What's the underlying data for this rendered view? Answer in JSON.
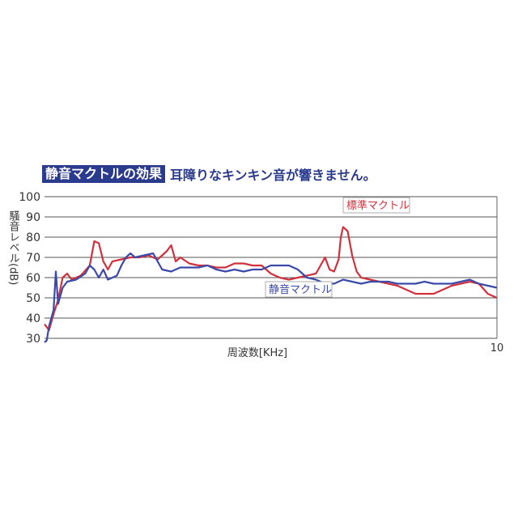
{
  "headline": {
    "badge": "静音マクトルの効果",
    "text": "耳障りなキンキン音が響きません。"
  },
  "chart_data": {
    "type": "line",
    "xlabel": "周波数[KHz]",
    "ylabel": "騒音レベル(dB)",
    "xlim": [
      0,
      10
    ],
    "ylim": [
      30,
      100
    ],
    "yticks": [
      30,
      40,
      50,
      60,
      70,
      80,
      90,
      100
    ],
    "xtick_label_right": "10",
    "grid": true,
    "series": [
      {
        "name": "標準マクトル",
        "color": "#d0313d",
        "label_position": "top-right",
        "points": [
          [
            0.0,
            37
          ],
          [
            0.1,
            34
          ],
          [
            0.2,
            42
          ],
          [
            0.3,
            49
          ],
          [
            0.4,
            60
          ],
          [
            0.5,
            62
          ],
          [
            0.6,
            59
          ],
          [
            0.8,
            61
          ],
          [
            1.0,
            66
          ],
          [
            1.1,
            78
          ],
          [
            1.2,
            77
          ],
          [
            1.3,
            68
          ],
          [
            1.4,
            64
          ],
          [
            1.5,
            68
          ],
          [
            1.7,
            69
          ],
          [
            1.9,
            70
          ],
          [
            2.1,
            70
          ],
          [
            2.3,
            71
          ],
          [
            2.5,
            69
          ],
          [
            2.7,
            73
          ],
          [
            2.8,
            76
          ],
          [
            2.9,
            68
          ],
          [
            3.0,
            70
          ],
          [
            3.2,
            67
          ],
          [
            3.4,
            66
          ],
          [
            3.6,
            66
          ],
          [
            3.8,
            65
          ],
          [
            4.0,
            65
          ],
          [
            4.2,
            67
          ],
          [
            4.4,
            67
          ],
          [
            4.6,
            66
          ],
          [
            4.8,
            66
          ],
          [
            5.0,
            62
          ],
          [
            5.2,
            60
          ],
          [
            5.4,
            59
          ],
          [
            5.6,
            60
          ],
          [
            5.8,
            61
          ],
          [
            6.0,
            62
          ],
          [
            6.1,
            66
          ],
          [
            6.2,
            70
          ],
          [
            6.3,
            64
          ],
          [
            6.4,
            63
          ],
          [
            6.5,
            69
          ],
          [
            6.55,
            80
          ],
          [
            6.6,
            85
          ],
          [
            6.7,
            83
          ],
          [
            6.8,
            71
          ],
          [
            6.9,
            63
          ],
          [
            7.0,
            60
          ],
          [
            7.2,
            59
          ],
          [
            7.4,
            58
          ],
          [
            7.6,
            57
          ],
          [
            7.8,
            56
          ],
          [
            8.0,
            54
          ],
          [
            8.2,
            52
          ],
          [
            8.4,
            52
          ],
          [
            8.6,
            52
          ],
          [
            8.8,
            54
          ],
          [
            9.0,
            56
          ],
          [
            9.2,
            57
          ],
          [
            9.4,
            58
          ],
          [
            9.6,
            57
          ],
          [
            9.8,
            52
          ],
          [
            10.0,
            50
          ]
        ]
      },
      {
        "name": "静音マクトル",
        "color": "#3b4aa8",
        "label_position": "center",
        "points": [
          [
            0.0,
            28
          ],
          [
            0.05,
            29
          ],
          [
            0.1,
            36
          ],
          [
            0.2,
            44
          ],
          [
            0.25,
            63
          ],
          [
            0.3,
            47
          ],
          [
            0.4,
            55
          ],
          [
            0.5,
            58
          ],
          [
            0.7,
            59
          ],
          [
            0.9,
            62
          ],
          [
            1.0,
            66
          ],
          [
            1.1,
            64
          ],
          [
            1.2,
            60
          ],
          [
            1.3,
            64
          ],
          [
            1.4,
            59
          ],
          [
            1.5,
            60
          ],
          [
            1.6,
            61
          ],
          [
            1.7,
            66
          ],
          [
            1.8,
            70
          ],
          [
            1.9,
            72
          ],
          [
            2.0,
            70
          ],
          [
            2.2,
            71
          ],
          [
            2.4,
            72
          ],
          [
            2.6,
            64
          ],
          [
            2.8,
            63
          ],
          [
            3.0,
            65
          ],
          [
            3.2,
            65
          ],
          [
            3.4,
            65
          ],
          [
            3.6,
            66
          ],
          [
            3.8,
            64
          ],
          [
            4.0,
            63
          ],
          [
            4.2,
            64
          ],
          [
            4.4,
            63
          ],
          [
            4.6,
            64
          ],
          [
            4.8,
            64
          ],
          [
            5.0,
            66
          ],
          [
            5.2,
            66
          ],
          [
            5.4,
            66
          ],
          [
            5.6,
            64
          ],
          [
            5.8,
            60
          ],
          [
            6.0,
            59
          ],
          [
            6.2,
            57
          ],
          [
            6.4,
            57
          ],
          [
            6.6,
            59
          ],
          [
            6.8,
            58
          ],
          [
            7.0,
            57
          ],
          [
            7.2,
            58
          ],
          [
            7.4,
            58
          ],
          [
            7.6,
            58
          ],
          [
            7.8,
            57
          ],
          [
            8.0,
            57
          ],
          [
            8.2,
            57
          ],
          [
            8.4,
            58
          ],
          [
            8.6,
            57
          ],
          [
            8.8,
            57
          ],
          [
            9.0,
            57
          ],
          [
            9.2,
            58
          ],
          [
            9.4,
            59
          ],
          [
            9.6,
            57
          ],
          [
            9.8,
            56
          ],
          [
            10.0,
            55
          ]
        ]
      }
    ]
  }
}
